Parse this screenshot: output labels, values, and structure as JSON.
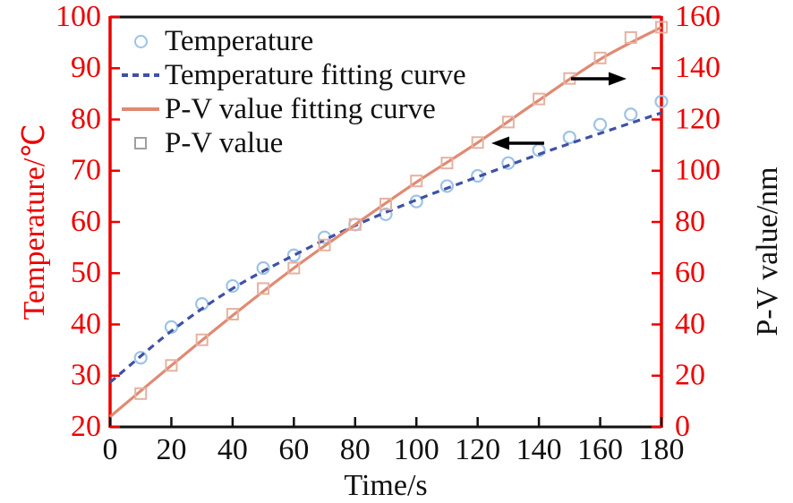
{
  "chart_data": {
    "type": "line",
    "title": "",
    "x_axis": {
      "label": "Time/s",
      "min": 0,
      "max": 180,
      "ticks": [
        0,
        20,
        40,
        60,
        80,
        100,
        120,
        140,
        160,
        180
      ],
      "tick_color": "#111111",
      "axis_color": "#111111"
    },
    "left_axis": {
      "label": "Temperature/℃",
      "min": 20,
      "max": 100,
      "ticks": [
        20,
        30,
        40,
        50,
        60,
        70,
        80,
        90,
        100
      ],
      "tick_color": "#ee0000",
      "axis_color": "#ee0000"
    },
    "right_axis": {
      "label": "P-V value/nm",
      "min": 0,
      "max": 160,
      "ticks": [
        0,
        20,
        40,
        60,
        80,
        100,
        120,
        140,
        160
      ],
      "tick_color": "#ee0000",
      "axis_color": "#ee0000"
    },
    "series": [
      {
        "name": "Temperature",
        "axis": "left",
        "style": "scatter",
        "marker": "circle",
        "color": "#9dc3e6",
        "x": [
          10,
          20,
          30,
          40,
          50,
          60,
          70,
          80,
          90,
          100,
          110,
          120,
          130,
          140,
          150,
          160,
          170,
          180
        ],
        "y": [
          33.5,
          39.5,
          44,
          47.5,
          51,
          53.5,
          57,
          59.5,
          61.5,
          64,
          67,
          69,
          71.5,
          74,
          76.5,
          79,
          81,
          83.5
        ]
      },
      {
        "name": "Temperature fitting curve",
        "axis": "left",
        "style": "line",
        "dashed": true,
        "color": "#3f51a5",
        "x": [
          0,
          20,
          40,
          60,
          80,
          100,
          120,
          140,
          160,
          180
        ],
        "y": [
          28.7,
          38.7,
          47.0,
          53.5,
          59.3,
          64.3,
          68.8,
          73.2,
          77.3,
          81.3
        ]
      },
      {
        "name": "P-V value fitting curve",
        "axis": "right",
        "style": "line",
        "dashed": false,
        "color": "#e08a72",
        "x": [
          0,
          20,
          40,
          60,
          80,
          100,
          120,
          140,
          160,
          180
        ],
        "y": [
          4,
          24,
          43.5,
          62,
          79,
          95.5,
          111,
          127.5,
          143.5,
          156
        ]
      },
      {
        "name": "P-V value",
        "axis": "right",
        "style": "scatter",
        "marker": "square",
        "color": "#e6b1a0",
        "x": [
          10,
          20,
          30,
          40,
          50,
          60,
          70,
          80,
          90,
          100,
          110,
          120,
          130,
          140,
          150,
          160,
          170,
          180
        ],
        "y": [
          13,
          24,
          34,
          44,
          54,
          62,
          71,
          79,
          87,
          96,
          103,
          111,
          119,
          128,
          136,
          144,
          152,
          156
        ]
      }
    ],
    "legend": {
      "position": "top-left-inside",
      "items": [
        {
          "label": "Temperature",
          "marker": "circle"
        },
        {
          "label": "Temperature fitting curve",
          "marker": "dashed-line"
        },
        {
          "label": "P-V value fitting curve",
          "marker": "solid-line"
        },
        {
          "label": "P-V value",
          "marker": "square"
        }
      ]
    },
    "annotations": [
      {
        "type": "arrow",
        "direction": "left",
        "points_to": "Temperature fitting curve",
        "x_from": 608,
        "x_to": 549,
        "y": 160
      },
      {
        "type": "arrow",
        "direction": "right",
        "points_to": "P-V value fitting curve",
        "x_from": 638,
        "x_to": 700,
        "y": 88
      }
    ],
    "colors": {
      "axis_red": "#ee0000",
      "temp_marker": "#9dc3e6",
      "temp_fit": "#3f51a5",
      "pv_fit": "#e08a72",
      "pv_marker": "#e6b1a0",
      "legend_square": "#a0a0a0",
      "arrow": "#000000",
      "background": "#ffffff"
    },
    "grid": false
  }
}
